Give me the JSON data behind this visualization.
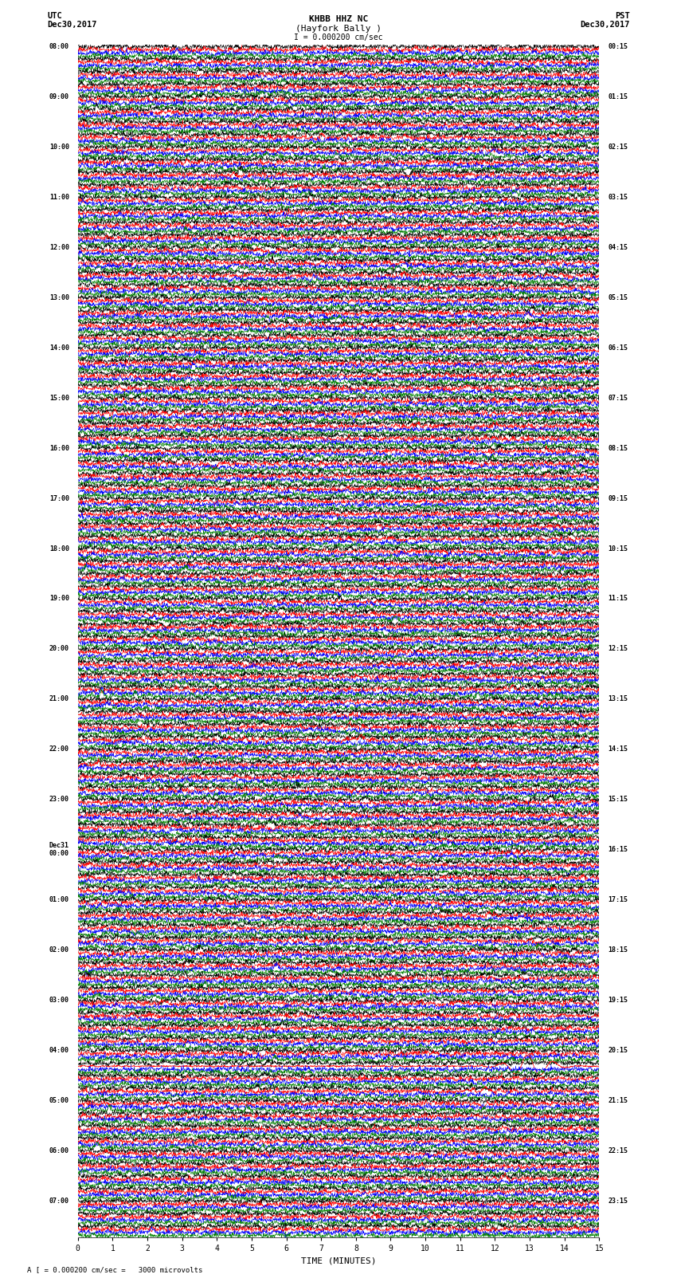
{
  "title_line1": "KHBB HHZ NC",
  "title_line2": "(Hayfork Bally )",
  "scale_bar": "I = 0.000200 cm/sec",
  "utc_label": "UTC",
  "utc_date": "Dec30,2017",
  "pst_label": "PST",
  "pst_date": "Dec30,2017",
  "xlabel": "TIME (MINUTES)",
  "scale_note": "A [ = 0.000200 cm/sec =   3000 microvolts",
  "left_times": [
    "08:00",
    "",
    "",
    "",
    "09:00",
    "",
    "",
    "",
    "10:00",
    "",
    "",
    "",
    "11:00",
    "",
    "",
    "",
    "12:00",
    "",
    "",
    "",
    "13:00",
    "",
    "",
    "",
    "14:00",
    "",
    "",
    "",
    "15:00",
    "",
    "",
    "",
    "16:00",
    "",
    "",
    "",
    "17:00",
    "",
    "",
    "",
    "18:00",
    "",
    "",
    "",
    "19:00",
    "",
    "",
    "",
    "20:00",
    "",
    "",
    "",
    "21:00",
    "",
    "",
    "",
    "22:00",
    "",
    "",
    "",
    "23:00",
    "",
    "",
    "",
    "Dec31\n00:00",
    "",
    "",
    "",
    "01:00",
    "",
    "",
    "",
    "02:00",
    "",
    "",
    "",
    "03:00",
    "",
    "",
    "",
    "04:00",
    "",
    "",
    "",
    "05:00",
    "",
    "",
    "",
    "06:00",
    "",
    "",
    "",
    "07:00",
    "",
    ""
  ],
  "right_times": [
    "00:15",
    "",
    "",
    "",
    "01:15",
    "",
    "",
    "",
    "02:15",
    "",
    "",
    "",
    "03:15",
    "",
    "",
    "",
    "04:15",
    "",
    "",
    "",
    "05:15",
    "",
    "",
    "",
    "06:15",
    "",
    "",
    "",
    "07:15",
    "",
    "",
    "",
    "08:15",
    "",
    "",
    "",
    "09:15",
    "",
    "",
    "",
    "10:15",
    "",
    "",
    "",
    "11:15",
    "",
    "",
    "",
    "12:15",
    "",
    "",
    "",
    "13:15",
    "",
    "",
    "",
    "14:15",
    "",
    "",
    "",
    "15:15",
    "",
    "",
    "",
    "16:15",
    "",
    "",
    "",
    "17:15",
    "",
    "",
    "",
    "18:15",
    "",
    "",
    "",
    "19:15",
    "",
    "",
    "",
    "20:15",
    "",
    "",
    "",
    "21:15",
    "",
    "",
    "",
    "22:15",
    "",
    "",
    "",
    "23:15",
    "",
    ""
  ],
  "n_groups": 95,
  "colors": [
    "black",
    "red",
    "blue",
    "green"
  ],
  "bg_color": "white",
  "xmin": 0,
  "xmax": 15,
  "xticks": [
    0,
    1,
    2,
    3,
    4,
    5,
    6,
    7,
    8,
    9,
    10,
    11,
    12,
    13,
    14,
    15
  ],
  "special_group": 81,
  "special_col": 1
}
